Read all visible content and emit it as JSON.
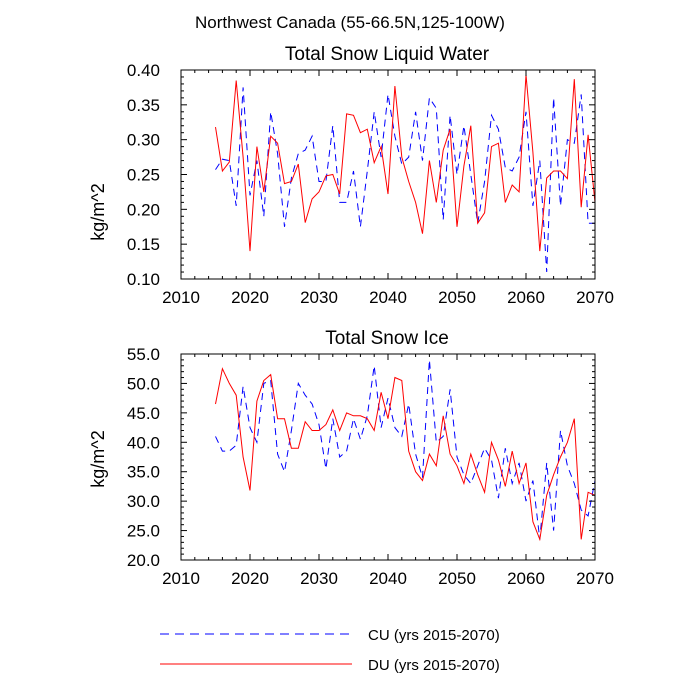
{
  "figure_title": "Northwest Canada (55-66.5N,125-100W)",
  "colors": {
    "cu": "#0000ff",
    "du": "#ff0000",
    "axis": "#000000"
  },
  "chart_data": [
    {
      "type": "line",
      "title": "Total Snow Liquid Water",
      "ylabel": "kg/m^2",
      "xlabel": "",
      "xlim": [
        2010,
        2070
      ],
      "ylim": [
        0.1,
        0.4
      ],
      "xticks": [
        2010,
        2020,
        2030,
        2040,
        2050,
        2060,
        2070
      ],
      "yticks": [
        0.1,
        0.15,
        0.2,
        0.25,
        0.3,
        0.35,
        0.4
      ],
      "ytick_decimals": 2,
      "series": [
        {
          "name": "CU (yrs 2015-2070)",
          "style": "dashed",
          "x_start": 2015,
          "values": [
            0.257,
            0.272,
            0.27,
            0.205,
            0.375,
            0.22,
            0.27,
            0.19,
            0.34,
            0.28,
            0.175,
            0.245,
            0.28,
            0.285,
            0.305,
            0.24,
            0.24,
            0.32,
            0.21,
            0.21,
            0.255,
            0.175,
            0.255,
            0.34,
            0.275,
            0.365,
            0.305,
            0.265,
            0.275,
            0.34,
            0.27,
            0.36,
            0.345,
            0.185,
            0.335,
            0.25,
            0.32,
            0.25,
            0.18,
            0.24,
            0.335,
            0.315,
            0.26,
            0.255,
            0.275,
            0.34,
            0.205,
            0.27,
            0.11,
            0.36,
            0.205,
            0.3,
            0.295,
            0.365,
            0.18,
            0.18
          ]
        },
        {
          "name": "DU (yrs 2015-2070)",
          "style": "solid",
          "x_start": 2015,
          "values": [
            0.318,
            0.255,
            0.268,
            0.385,
            0.275,
            0.14,
            0.29,
            0.225,
            0.305,
            0.295,
            0.237,
            0.24,
            0.265,
            0.181,
            0.215,
            0.225,
            0.248,
            0.25,
            0.222,
            0.337,
            0.335,
            0.31,
            0.315,
            0.267,
            0.29,
            0.222,
            0.377,
            0.275,
            0.24,
            0.21,
            0.165,
            0.27,
            0.21,
            0.285,
            0.315,
            0.175,
            0.262,
            0.32,
            0.18,
            0.195,
            0.29,
            0.295,
            0.21,
            0.235,
            0.225,
            0.393,
            0.282,
            0.14,
            0.245,
            0.255,
            0.255,
            0.244,
            0.387,
            0.203,
            0.307,
            0.21
          ]
        }
      ]
    },
    {
      "type": "line",
      "title": "Total Snow Ice",
      "ylabel": "kg/m^2",
      "xlabel": "",
      "xlim": [
        2010,
        2070
      ],
      "ylim": [
        20.0,
        55.0
      ],
      "xticks": [
        2010,
        2020,
        2030,
        2040,
        2050,
        2060,
        2070
      ],
      "yticks": [
        20.0,
        25.0,
        30.0,
        35.0,
        40.0,
        45.0,
        50.0,
        55.0
      ],
      "ytick_decimals": 1,
      "series": [
        {
          "name": "CU (yrs 2015-2070)",
          "style": "dashed",
          "x_start": 2015,
          "values": [
            41.0,
            38.5,
            38.5,
            39.5,
            49.5,
            42.5,
            40.0,
            50.0,
            50.5,
            38.0,
            35.0,
            42.0,
            50.0,
            48.0,
            46.5,
            43.0,
            35.5,
            44.0,
            37.5,
            38.5,
            44.0,
            40.5,
            44.5,
            53.0,
            42.5,
            47.5,
            42.5,
            41.0,
            46.5,
            38.0,
            34.0,
            54.0,
            40.0,
            41.0,
            49.0,
            37.5,
            34.5,
            33.0,
            36.0,
            39.0,
            37.0,
            30.5,
            39.0,
            33.0,
            36.5,
            30.0,
            33.5,
            23.5,
            36.5,
            25.0,
            42.0,
            36.0,
            33.0,
            28.5,
            27.5,
            33.5
          ]
        },
        {
          "name": "DU (yrs 2015-2070)",
          "style": "solid",
          "x_start": 2015,
          "values": [
            46.5,
            52.5,
            50.0,
            48.0,
            37.5,
            31.8,
            47.0,
            50.5,
            51.5,
            44.0,
            44.0,
            39.0,
            39.0,
            43.5,
            42.0,
            42.0,
            43.0,
            45.5,
            42.0,
            45.0,
            44.5,
            44.5,
            44.0,
            42.0,
            48.5,
            44.0,
            51.0,
            50.5,
            38.5,
            35.0,
            33.5,
            38.0,
            36.0,
            44.5,
            38.0,
            36.0,
            33.0,
            38.0,
            34.5,
            31.5,
            40.0,
            37.0,
            32.5,
            38.5,
            33.0,
            36.5,
            26.5,
            23.5,
            31.0,
            34.5,
            37.5,
            40.0,
            44.0,
            23.5,
            31.5,
            31.0
          ]
        }
      ]
    }
  ],
  "legend": [
    {
      "label": "CU (yrs 2015-2070)",
      "style": "dashed"
    },
    {
      "label": "DU (yrs 2015-2070)",
      "style": "solid"
    }
  ]
}
